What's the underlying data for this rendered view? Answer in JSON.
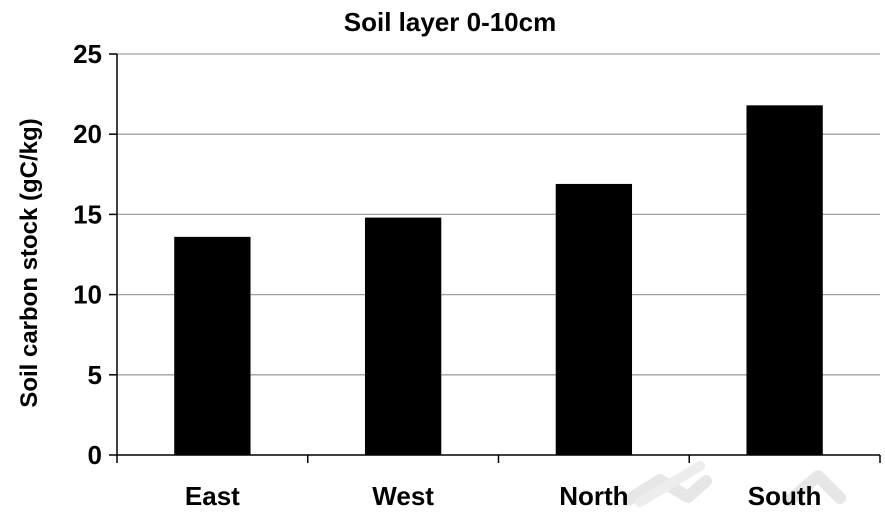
{
  "chart_data": {
    "type": "bar",
    "title": "Soil layer 0-10cm",
    "xlabel": "",
    "ylabel": "Soil carbon stock (gC/kg)",
    "categories": [
      "East",
      "West",
      "North",
      "South"
    ],
    "values": [
      13.6,
      14.8,
      16.9,
      21.8
    ],
    "ylim": [
      0,
      25
    ],
    "yticks": [
      "0",
      "5",
      "10",
      "15",
      "20",
      "25"
    ],
    "grid": true,
    "legend": "none",
    "colors": {
      "bar": "#000000",
      "grid": "#a0a0a0",
      "axis": "#000000",
      "watermark": "#e6e6e6"
    }
  }
}
